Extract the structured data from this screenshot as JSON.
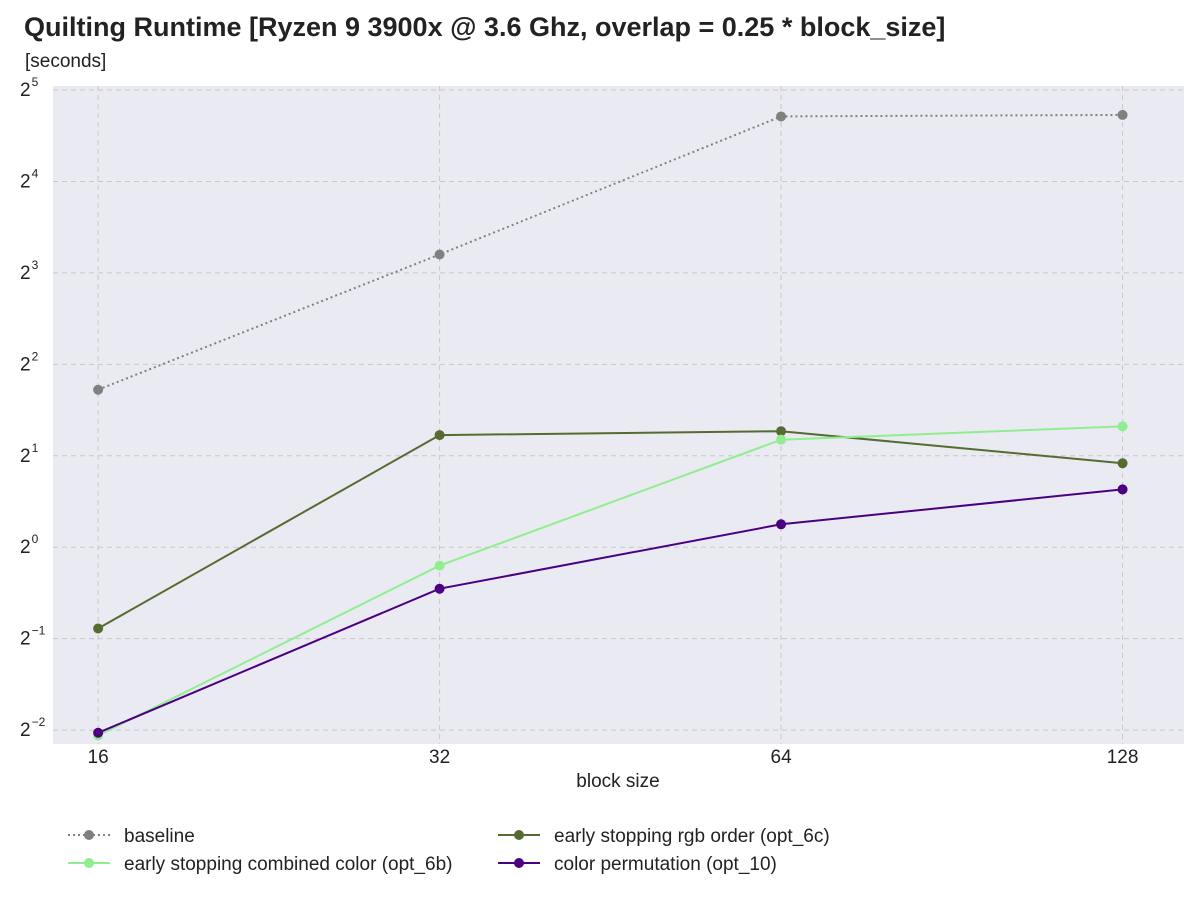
{
  "chart_data": {
    "type": "line",
    "title": "Quilting Runtime [Ryzen 9 3900x @ 3.6 Ghz, overlap = 0.25 * block_size]",
    "ylabel": "[seconds]",
    "xlabel": "block size",
    "x_scale": "log2",
    "y_scale": "log2",
    "x": [
      16,
      32,
      64,
      128
    ],
    "x_tick_labels": [
      "16",
      "32",
      "64",
      "128"
    ],
    "y_ticks": [
      {
        "base": "2",
        "exp": "−2",
        "value": 0.25
      },
      {
        "base": "2",
        "exp": "−1",
        "value": 0.5
      },
      {
        "base": "2",
        "exp": "0",
        "value": 1
      },
      {
        "base": "2",
        "exp": "1",
        "value": 2
      },
      {
        "base": "2",
        "exp": "2",
        "value": 4
      },
      {
        "base": "2",
        "exp": "3",
        "value": 8
      },
      {
        "base": "2",
        "exp": "4",
        "value": 16
      },
      {
        "base": "2",
        "exp": "5",
        "value": 32
      }
    ],
    "xlim": [
      14.6,
      145
    ],
    "ylim": [
      0.225,
      33.0
    ],
    "grid": true,
    "legend_position": "bottom",
    "series": [
      {
        "name": "baseline",
        "color": "#808080",
        "dash": "dotted",
        "values": [
          3.3,
          9.2,
          26.2,
          26.5
        ]
      },
      {
        "name": "early stopping rgb order (opt_6c)",
        "color": "#556b2f",
        "dash": "solid",
        "values": [
          0.54,
          2.34,
          2.41,
          1.89
        ]
      },
      {
        "name": "early stopping combined color (opt_6b)",
        "color": "#90ee90",
        "dash": "solid",
        "values": [
          0.24,
          0.87,
          2.26,
          2.5
        ]
      },
      {
        "name": "color permutation (opt_10)",
        "color": "#4b0082",
        "dash": "solid",
        "values": [
          0.245,
          0.73,
          1.19,
          1.55
        ]
      }
    ]
  }
}
